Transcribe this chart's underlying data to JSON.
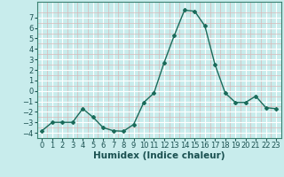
{
  "x": [
    0,
    1,
    2,
    3,
    4,
    5,
    6,
    7,
    8,
    9,
    10,
    11,
    12,
    13,
    14,
    15,
    16,
    17,
    18,
    19,
    20,
    21,
    22,
    23
  ],
  "y": [
    -3.8,
    -3.0,
    -3.0,
    -3.0,
    -1.7,
    -2.5,
    -3.5,
    -3.8,
    -3.85,
    -3.2,
    -1.1,
    -0.2,
    2.7,
    5.3,
    7.7,
    7.6,
    6.2,
    2.5,
    -0.2,
    -1.1,
    -1.1,
    -0.5,
    -1.6,
    -1.7
  ],
  "line_color": "#1a6b5a",
  "marker": "D",
  "marker_size": 2.0,
  "bg_color": "#c8ecec",
  "grid_color_major": "#ffffff",
  "grid_color_minor": "#d8b8b8",
  "xlabel": "Humidex (Indice chaleur)",
  "ylim": [
    -4.5,
    8.0
  ],
  "xlim": [
    -0.5,
    23.5
  ],
  "yticks": [
    -4,
    -3,
    -2,
    -1,
    0,
    1,
    2,
    3,
    4,
    5,
    6,
    7
  ],
  "xticks": [
    0,
    1,
    2,
    3,
    4,
    5,
    6,
    7,
    8,
    9,
    10,
    11,
    12,
    13,
    14,
    15,
    16,
    17,
    18,
    19,
    20,
    21,
    22,
    23
  ],
  "xlabel_fontsize": 7.5,
  "tick_fontsize": 6.0,
  "linewidth": 1.0
}
